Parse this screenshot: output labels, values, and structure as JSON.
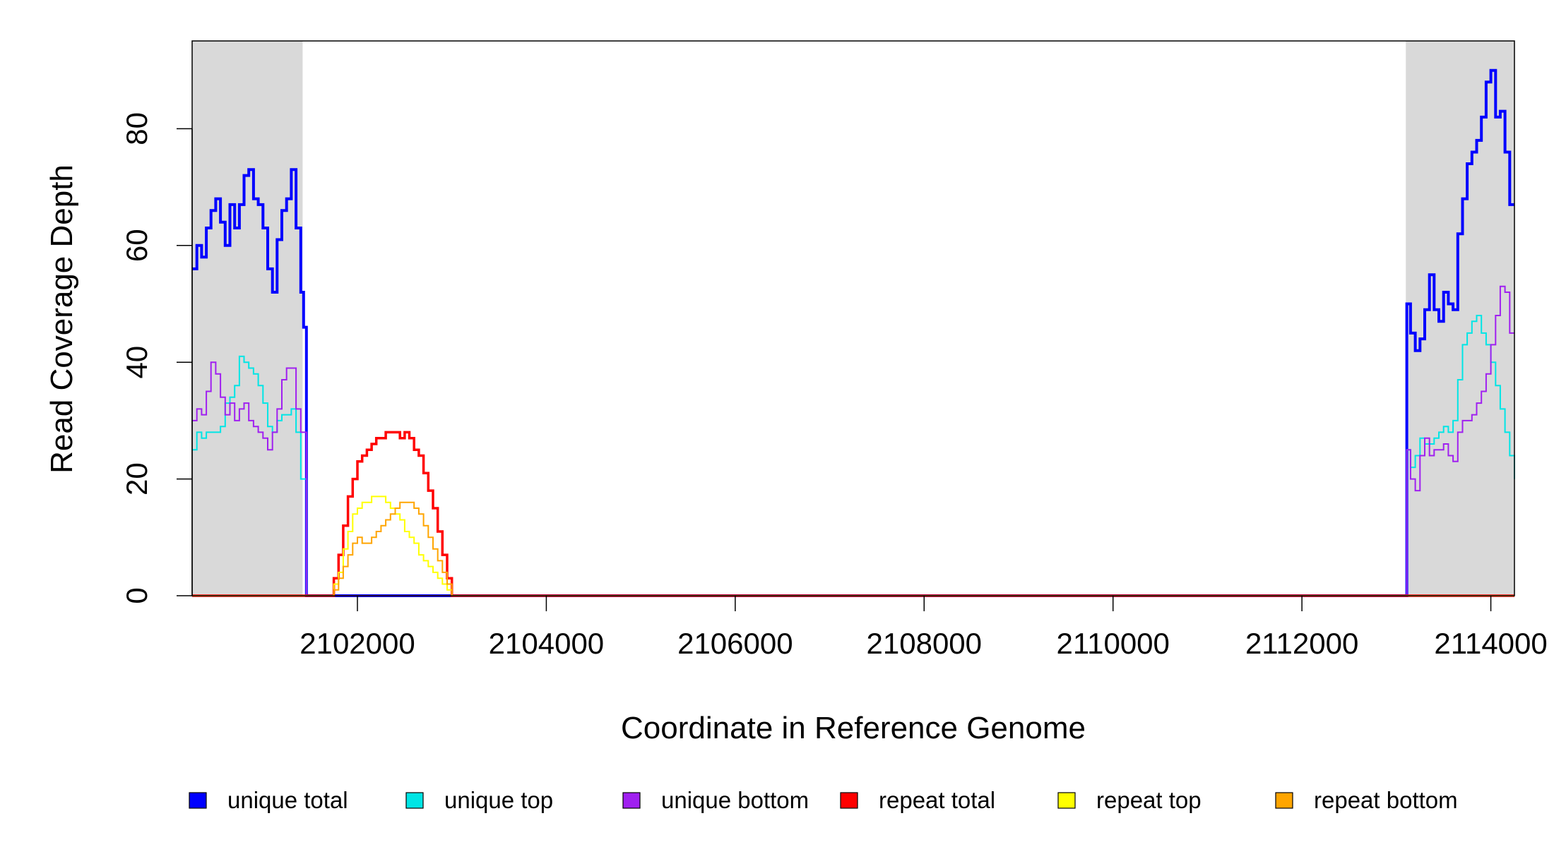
{
  "chart_data": {
    "type": "line",
    "title": "",
    "xlabel": "Coordinate in Reference Genome",
    "ylabel": "Read Coverage Depth",
    "xlim": [
      2100250,
      2114250
    ],
    "ylim": [
      0,
      95
    ],
    "xticks": [
      2102000,
      2104000,
      2106000,
      2108000,
      2110000,
      2112000,
      2114000
    ],
    "yticks": [
      0,
      20,
      40,
      60,
      80
    ],
    "grid": false,
    "legend_position": "bottom",
    "shaded_regions": [
      {
        "x0": 2100250,
        "x1": 2101420,
        "color": "#d9d9d9"
      },
      {
        "x0": 2113100,
        "x1": 2114250,
        "color": "#d9d9d9"
      }
    ],
    "series": [
      {
        "name": "unique total",
        "color": "#0000ff",
        "points": [
          [
            2100250,
            56
          ],
          [
            2100300,
            60
          ],
          [
            2100350,
            58
          ],
          [
            2100400,
            63
          ],
          [
            2100450,
            66
          ],
          [
            2100500,
            68
          ],
          [
            2100550,
            64
          ],
          [
            2100600,
            60
          ],
          [
            2100650,
            67
          ],
          [
            2100700,
            63
          ],
          [
            2100750,
            67
          ],
          [
            2100800,
            72
          ],
          [
            2100850,
            73
          ],
          [
            2100900,
            68
          ],
          [
            2100950,
            67
          ],
          [
            2101000,
            63
          ],
          [
            2101050,
            56
          ],
          [
            2101100,
            52
          ],
          [
            2101150,
            61
          ],
          [
            2101200,
            66
          ],
          [
            2101250,
            68
          ],
          [
            2101300,
            73
          ],
          [
            2101350,
            63
          ],
          [
            2101400,
            52
          ],
          [
            2101430,
            46
          ],
          [
            2101460,
            0
          ],
          [
            2113100,
            0
          ],
          [
            2113110,
            50
          ],
          [
            2113150,
            45
          ],
          [
            2113200,
            42
          ],
          [
            2113250,
            44
          ],
          [
            2113300,
            49
          ],
          [
            2113350,
            55
          ],
          [
            2113400,
            49
          ],
          [
            2113450,
            47
          ],
          [
            2113500,
            52
          ],
          [
            2113550,
            50
          ],
          [
            2113600,
            49
          ],
          [
            2113650,
            62
          ],
          [
            2113700,
            68
          ],
          [
            2113750,
            74
          ],
          [
            2113800,
            76
          ],
          [
            2113850,
            78
          ],
          [
            2113900,
            82
          ],
          [
            2113950,
            88
          ],
          [
            2114000,
            90
          ],
          [
            2114050,
            82
          ],
          [
            2114100,
            83
          ],
          [
            2114150,
            76
          ],
          [
            2114200,
            67
          ],
          [
            2114250,
            67
          ]
        ]
      },
      {
        "name": "unique top",
        "color": "#00e5e5",
        "points": [
          [
            2100250,
            25
          ],
          [
            2100300,
            28
          ],
          [
            2100350,
            27
          ],
          [
            2100400,
            28
          ],
          [
            2100450,
            28
          ],
          [
            2100500,
            28
          ],
          [
            2100550,
            29
          ],
          [
            2100600,
            33
          ],
          [
            2100650,
            34
          ],
          [
            2100700,
            36
          ],
          [
            2100750,
            41
          ],
          [
            2100800,
            40
          ],
          [
            2100850,
            39
          ],
          [
            2100900,
            38
          ],
          [
            2100950,
            36
          ],
          [
            2101000,
            33
          ],
          [
            2101050,
            29
          ],
          [
            2101100,
            28
          ],
          [
            2101150,
            30
          ],
          [
            2101200,
            31
          ],
          [
            2101250,
            31
          ],
          [
            2101300,
            32
          ],
          [
            2101350,
            28
          ],
          [
            2101400,
            20
          ],
          [
            2101460,
            0
          ],
          [
            2113100,
            0
          ],
          [
            2113110,
            25
          ],
          [
            2113150,
            22
          ],
          [
            2113200,
            24
          ],
          [
            2113250,
            27
          ],
          [
            2113300,
            26
          ],
          [
            2113350,
            26
          ],
          [
            2113400,
            27
          ],
          [
            2113450,
            28
          ],
          [
            2113500,
            29
          ],
          [
            2113550,
            28
          ],
          [
            2113600,
            30
          ],
          [
            2113650,
            37
          ],
          [
            2113700,
            43
          ],
          [
            2113750,
            45
          ],
          [
            2113800,
            47
          ],
          [
            2113850,
            48
          ],
          [
            2113900,
            45
          ],
          [
            2113950,
            43
          ],
          [
            2114000,
            40
          ],
          [
            2114050,
            36
          ],
          [
            2114100,
            32
          ],
          [
            2114150,
            28
          ],
          [
            2114200,
            24
          ],
          [
            2114250,
            20
          ]
        ]
      },
      {
        "name": "unique bottom",
        "color": "#a020f0",
        "points": [
          [
            2100250,
            30
          ],
          [
            2100300,
            32
          ],
          [
            2100350,
            31
          ],
          [
            2100400,
            35
          ],
          [
            2100450,
            40
          ],
          [
            2100500,
            38
          ],
          [
            2100550,
            34
          ],
          [
            2100600,
            31
          ],
          [
            2100650,
            33
          ],
          [
            2100700,
            30
          ],
          [
            2100750,
            32
          ],
          [
            2100800,
            33
          ],
          [
            2100850,
            30
          ],
          [
            2100900,
            29
          ],
          [
            2100950,
            28
          ],
          [
            2101000,
            27
          ],
          [
            2101050,
            25
          ],
          [
            2101100,
            28
          ],
          [
            2101150,
            32
          ],
          [
            2101200,
            37
          ],
          [
            2101250,
            39
          ],
          [
            2101300,
            39
          ],
          [
            2101350,
            32
          ],
          [
            2101400,
            28
          ],
          [
            2101460,
            0
          ],
          [
            2113100,
            0
          ],
          [
            2113110,
            25
          ],
          [
            2113150,
            20
          ],
          [
            2113200,
            18
          ],
          [
            2113250,
            24
          ],
          [
            2113300,
            27
          ],
          [
            2113350,
            24
          ],
          [
            2113400,
            25
          ],
          [
            2113450,
            25
          ],
          [
            2113500,
            26
          ],
          [
            2113550,
            24
          ],
          [
            2113600,
            23
          ],
          [
            2113650,
            28
          ],
          [
            2113700,
            30
          ],
          [
            2113750,
            30
          ],
          [
            2113800,
            31
          ],
          [
            2113850,
            33
          ],
          [
            2113900,
            35
          ],
          [
            2113950,
            38
          ],
          [
            2114000,
            43
          ],
          [
            2114050,
            48
          ],
          [
            2114100,
            53
          ],
          [
            2114150,
            52
          ],
          [
            2114200,
            45
          ],
          [
            2114250,
            45
          ]
        ]
      },
      {
        "name": "repeat total",
        "color": "#ff0000",
        "points": [
          [
            2100250,
            0
          ],
          [
            2101700,
            0
          ],
          [
            2101750,
            3
          ],
          [
            2101800,
            7
          ],
          [
            2101850,
            12
          ],
          [
            2101900,
            17
          ],
          [
            2101950,
            20
          ],
          [
            2102000,
            23
          ],
          [
            2102050,
            24
          ],
          [
            2102100,
            25
          ],
          [
            2102150,
            26
          ],
          [
            2102200,
            27
          ],
          [
            2102250,
            27
          ],
          [
            2102300,
            28
          ],
          [
            2102350,
            28
          ],
          [
            2102400,
            28
          ],
          [
            2102450,
            27
          ],
          [
            2102500,
            28
          ],
          [
            2102550,
            27
          ],
          [
            2102600,
            25
          ],
          [
            2102650,
            24
          ],
          [
            2102700,
            21
          ],
          [
            2102750,
            18
          ],
          [
            2102800,
            15
          ],
          [
            2102850,
            11
          ],
          [
            2102900,
            7
          ],
          [
            2102950,
            3
          ],
          [
            2103000,
            0
          ],
          [
            2114250,
            0
          ]
        ]
      },
      {
        "name": "repeat top",
        "color": "#ffff00",
        "points": [
          [
            2100250,
            0
          ],
          [
            2101700,
            0
          ],
          [
            2101750,
            2
          ],
          [
            2101800,
            4
          ],
          [
            2101850,
            8
          ],
          [
            2101900,
            11
          ],
          [
            2101950,
            14
          ],
          [
            2102000,
            15
          ],
          [
            2102050,
            16
          ],
          [
            2102100,
            16
          ],
          [
            2102150,
            17
          ],
          [
            2102200,
            17
          ],
          [
            2102250,
            17
          ],
          [
            2102300,
            16
          ],
          [
            2102350,
            15
          ],
          [
            2102400,
            14
          ],
          [
            2102450,
            13
          ],
          [
            2102500,
            11
          ],
          [
            2102550,
            10
          ],
          [
            2102600,
            9
          ],
          [
            2102650,
            7
          ],
          [
            2102700,
            6
          ],
          [
            2102750,
            5
          ],
          [
            2102800,
            4
          ],
          [
            2102850,
            3
          ],
          [
            2102900,
            2
          ],
          [
            2102950,
            1
          ],
          [
            2103000,
            0
          ],
          [
            2114250,
            0
          ]
        ]
      },
      {
        "name": "repeat bottom",
        "color": "#ffa500",
        "points": [
          [
            2100250,
            0
          ],
          [
            2101700,
            0
          ],
          [
            2101750,
            1
          ],
          [
            2101800,
            3
          ],
          [
            2101850,
            5
          ],
          [
            2101900,
            7
          ],
          [
            2101950,
            9
          ],
          [
            2102000,
            10
          ],
          [
            2102050,
            9
          ],
          [
            2102100,
            9
          ],
          [
            2102150,
            10
          ],
          [
            2102200,
            11
          ],
          [
            2102250,
            12
          ],
          [
            2102300,
            13
          ],
          [
            2102350,
            14
          ],
          [
            2102400,
            15
          ],
          [
            2102450,
            16
          ],
          [
            2102500,
            16
          ],
          [
            2102550,
            16
          ],
          [
            2102600,
            15
          ],
          [
            2102650,
            14
          ],
          [
            2102700,
            12
          ],
          [
            2102750,
            10
          ],
          [
            2102800,
            8
          ],
          [
            2102850,
            6
          ],
          [
            2102900,
            4
          ],
          [
            2102950,
            2
          ],
          [
            2103000,
            0
          ],
          [
            2114250,
            0
          ]
        ]
      }
    ]
  }
}
